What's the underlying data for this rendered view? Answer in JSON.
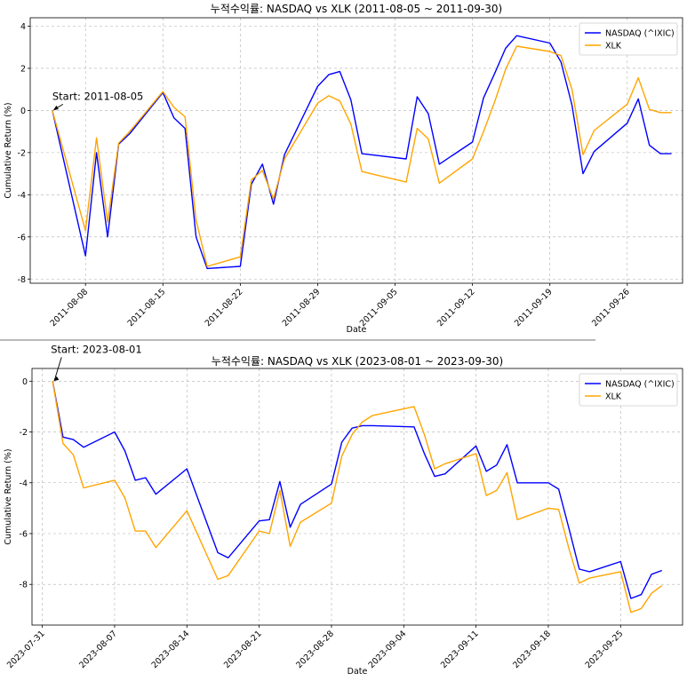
{
  "chart_data": [
    {
      "type": "line",
      "title": "누적수익률: NASDAQ vs XLK (2011-08-05 ~ 2011-09-30)",
      "xlabel": "Date",
      "ylabel": "Cumulative Return (%)",
      "xlim": [
        "2011-08-03",
        "2011-10-01"
      ],
      "ylim": [
        -8.2,
        4.4
      ],
      "xticks": [
        "2011-08-08",
        "2011-08-15",
        "2011-08-22",
        "2011-08-29",
        "2011-09-05",
        "2011-09-12",
        "2011-09-19",
        "2011-09-26"
      ],
      "yticks": [
        -8,
        -6,
        -4,
        -2,
        0,
        2,
        4
      ],
      "grid": true,
      "legend": "top-right",
      "annotation": {
        "text": "Start: 2011-08-05",
        "x": "2011-08-05",
        "y": 0
      },
      "series": [
        {
          "name": "NASDAQ (^IXIC)",
          "color": "#0000ff",
          "x": [
            "2011-08-05",
            "2011-08-08",
            "2011-08-09",
            "2011-08-10",
            "2011-08-11",
            "2011-08-12",
            "2011-08-15",
            "2011-08-16",
            "2011-08-17",
            "2011-08-18",
            "2011-08-19",
            "2011-08-22",
            "2011-08-23",
            "2011-08-24",
            "2011-08-25",
            "2011-08-26",
            "2011-08-29",
            "2011-08-30",
            "2011-08-31",
            "2011-09-01",
            "2011-09-02",
            "2011-09-06",
            "2011-09-07",
            "2011-09-08",
            "2011-09-09",
            "2011-09-12",
            "2011-09-13",
            "2011-09-14",
            "2011-09-15",
            "2011-09-16",
            "2011-09-19",
            "2011-09-20",
            "2011-09-21",
            "2011-09-22",
            "2011-09-23",
            "2011-09-26",
            "2011-09-27",
            "2011-09-28",
            "2011-09-29",
            "2011-09-30"
          ],
          "values": [
            0,
            -6.9,
            -2.0,
            -6.0,
            -1.6,
            -1.1,
            0.85,
            -0.35,
            -0.85,
            -6.0,
            -7.5,
            -7.4,
            -3.5,
            -2.55,
            -4.45,
            -2.1,
            1.15,
            1.7,
            1.85,
            0.5,
            -2.05,
            -2.3,
            0.65,
            -0.15,
            -2.55,
            -1.5,
            0.6,
            1.75,
            2.95,
            3.55,
            3.2,
            2.3,
            0.25,
            -3.0,
            -1.95,
            -0.6,
            0.55,
            -1.65,
            -2.05,
            -2.05
          ]
        },
        {
          "name": "XLK",
          "color": "#ffa500",
          "x": [
            "2011-08-05",
            "2011-08-08",
            "2011-08-09",
            "2011-08-10",
            "2011-08-11",
            "2011-08-12",
            "2011-08-15",
            "2011-08-16",
            "2011-08-17",
            "2011-08-18",
            "2011-08-19",
            "2011-08-22",
            "2011-08-23",
            "2011-08-24",
            "2011-08-25",
            "2011-08-26",
            "2011-08-29",
            "2011-08-30",
            "2011-08-31",
            "2011-09-01",
            "2011-09-02",
            "2011-09-06",
            "2011-09-07",
            "2011-09-08",
            "2011-09-09",
            "2011-09-12",
            "2011-09-13",
            "2011-09-14",
            "2011-09-15",
            "2011-09-16",
            "2011-09-19",
            "2011-09-20",
            "2011-09-21",
            "2011-09-22",
            "2011-09-23",
            "2011-09-26",
            "2011-09-27",
            "2011-09-28",
            "2011-09-29",
            "2011-09-30"
          ],
          "values": [
            0,
            -5.7,
            -1.3,
            -5.3,
            -1.55,
            -1.0,
            0.9,
            0.15,
            -0.3,
            -5.2,
            -7.4,
            -6.95,
            -3.3,
            -2.85,
            -4.2,
            -2.3,
            0.35,
            0.7,
            0.45,
            -0.65,
            -2.9,
            -3.4,
            -0.85,
            -1.35,
            -3.45,
            -2.3,
            -1.0,
            0.4,
            1.95,
            3.05,
            2.8,
            2.6,
            1.0,
            -2.1,
            -0.95,
            0.3,
            1.55,
            0.05,
            -0.1,
            -0.1
          ]
        }
      ]
    },
    {
      "type": "line",
      "title": "누적수익률: NASDAQ vs XLK (2023-08-01 ~ 2023-09-30)",
      "xlabel": "Date",
      "ylabel": "Cumulative Return (%)",
      "xlim": [
        "2023-07-30",
        "2023-10-01"
      ],
      "ylim": [
        -9.6,
        0.5
      ],
      "xticks": [
        "2023-07-31",
        "2023-08-07",
        "2023-08-14",
        "2023-08-21",
        "2023-08-28",
        "2023-09-04",
        "2023-09-11",
        "2023-09-18",
        "2023-09-25"
      ],
      "yticks": [
        -8,
        -6,
        -4,
        -2,
        0
      ],
      "grid": true,
      "legend": "top-right",
      "annotation": {
        "text": "Start: 2023-08-01",
        "x": "2023-08-01",
        "y": 0
      },
      "series": [
        {
          "name": "NASDAQ (^IXIC)",
          "color": "#0000ff",
          "x": [
            "2023-08-01",
            "2023-08-02",
            "2023-08-03",
            "2023-08-04",
            "2023-08-07",
            "2023-08-08",
            "2023-08-09",
            "2023-08-10",
            "2023-08-11",
            "2023-08-14",
            "2023-08-17",
            "2023-08-18",
            "2023-08-21",
            "2023-08-22",
            "2023-08-23",
            "2023-08-24",
            "2023-08-25",
            "2023-08-28",
            "2023-08-29",
            "2023-08-30",
            "2023-08-31",
            "2023-09-01",
            "2023-09-05",
            "2023-09-06",
            "2023-09-07",
            "2023-09-08",
            "2023-09-11",
            "2023-09-12",
            "2023-09-13",
            "2023-09-14",
            "2023-09-15",
            "2023-09-18",
            "2023-09-19",
            "2023-09-20",
            "2023-09-21",
            "2023-09-22",
            "2023-09-25",
            "2023-09-26",
            "2023-09-27",
            "2023-09-28",
            "2023-09-29"
          ],
          "values": [
            0,
            -2.2,
            -2.3,
            -2.6,
            -2.0,
            -2.75,
            -3.9,
            -3.8,
            -4.45,
            -3.45,
            -6.75,
            -6.95,
            -5.5,
            -5.45,
            -3.95,
            -5.75,
            -4.85,
            -4.05,
            -2.4,
            -1.85,
            -1.75,
            -1.75,
            -1.8,
            -2.85,
            -3.75,
            -3.65,
            -2.55,
            -3.55,
            -3.3,
            -2.5,
            -4.0,
            -4.0,
            -4.25,
            -5.8,
            -7.4,
            -7.5,
            -7.1,
            -8.55,
            -8.4,
            -7.6,
            -7.45
          ]
        },
        {
          "name": "XLK",
          "color": "#ffa500",
          "x": [
            "2023-08-01",
            "2023-08-02",
            "2023-08-03",
            "2023-08-04",
            "2023-08-07",
            "2023-08-08",
            "2023-08-09",
            "2023-08-10",
            "2023-08-11",
            "2023-08-14",
            "2023-08-17",
            "2023-08-18",
            "2023-08-21",
            "2023-08-22",
            "2023-08-23",
            "2023-08-24",
            "2023-08-25",
            "2023-08-28",
            "2023-08-29",
            "2023-08-30",
            "2023-08-31",
            "2023-09-01",
            "2023-09-05",
            "2023-09-06",
            "2023-09-07",
            "2023-09-08",
            "2023-09-11",
            "2023-09-12",
            "2023-09-13",
            "2023-09-14",
            "2023-09-15",
            "2023-09-18",
            "2023-09-19",
            "2023-09-20",
            "2023-09-21",
            "2023-09-22",
            "2023-09-25",
            "2023-09-26",
            "2023-09-27",
            "2023-09-28",
            "2023-09-29"
          ],
          "values": [
            0,
            -2.45,
            -2.9,
            -4.2,
            -3.9,
            -4.6,
            -5.9,
            -5.9,
            -6.55,
            -5.1,
            -7.8,
            -7.65,
            -5.9,
            -6.0,
            -4.3,
            -6.5,
            -5.55,
            -4.8,
            -2.95,
            -2.1,
            -1.6,
            -1.35,
            -1.0,
            -2.1,
            -3.45,
            -3.25,
            -2.85,
            -4.5,
            -4.3,
            -3.6,
            -5.45,
            -5.0,
            -5.05,
            -6.6,
            -7.95,
            -7.75,
            -7.5,
            -9.1,
            -8.95,
            -8.35,
            -8.05
          ]
        }
      ]
    }
  ]
}
